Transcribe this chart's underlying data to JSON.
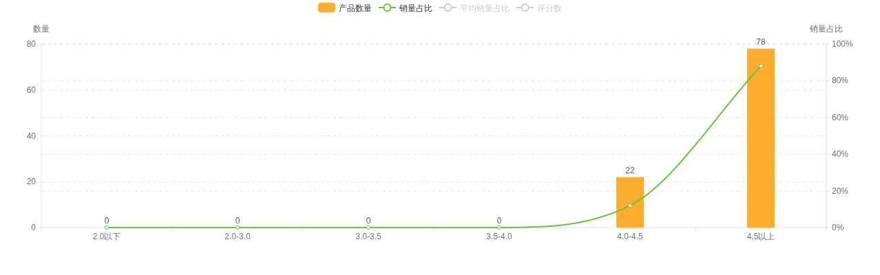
{
  "chart_data": {
    "type": "bar",
    "categories": [
      "2.0以下",
      "2.0-3.0",
      "3.0-3.5",
      "3.5-4.0",
      "4.0-4.5",
      "4.5以上"
    ],
    "ylabel": "数量",
    "y2label": "销量占比",
    "ylim": [
      0,
      80
    ],
    "yticks": [
      0,
      20,
      40,
      60,
      80
    ],
    "y2lim": [
      0,
      100
    ],
    "y2ticks": [
      {
        "value": 0,
        "label": "0%"
      },
      {
        "value": 20,
        "label": "20%"
      },
      {
        "value": 40,
        "label": "40%"
      },
      {
        "value": 60,
        "label": "60%"
      },
      {
        "value": 80,
        "label": "80%"
      },
      {
        "value": 100,
        "label": "100%"
      }
    ],
    "grid": true,
    "legend": "top",
    "series": [
      {
        "name": "产品数量",
        "color": "#ffad2f",
        "values": [
          0,
          0,
          0,
          0,
          22,
          78
        ],
        "data_labels": true
      },
      {
        "name": "销量占比",
        "type": "line",
        "axis": "y2",
        "color": "#67c23a",
        "values": [
          0,
          0,
          0,
          0,
          12,
          88
        ],
        "marker": "circle",
        "line_style": "solid"
      },
      {
        "name": "平均销量占比",
        "type": "line",
        "color": "#cccccc",
        "values": [
          null,
          null,
          null,
          null,
          null,
          null
        ]
      },
      {
        "name": "评分数",
        "type": "line",
        "color": "#cccccc",
        "values": [
          null,
          null,
          null,
          null,
          null,
          null
        ]
      }
    ]
  }
}
